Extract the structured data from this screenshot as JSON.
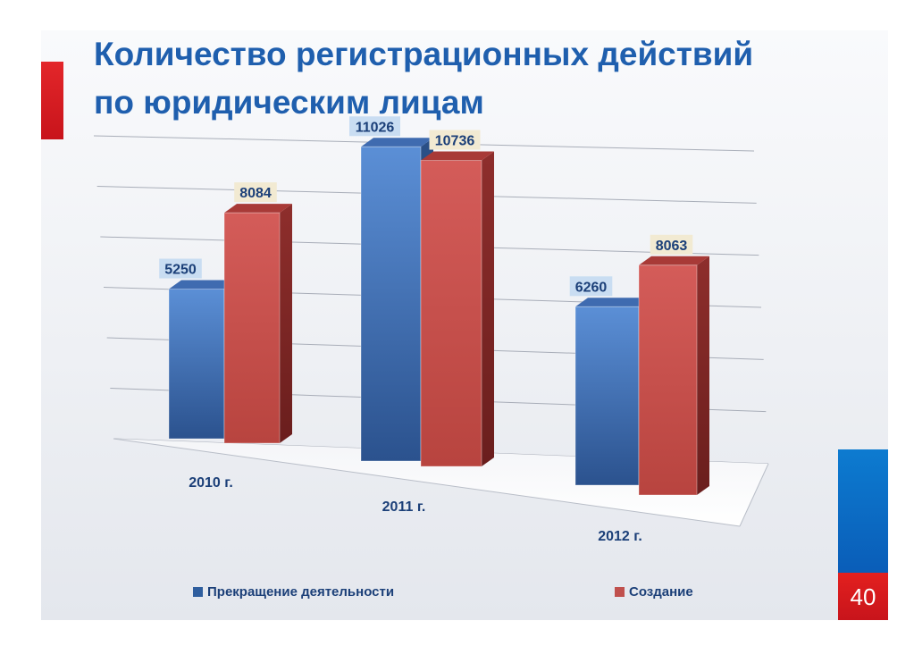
{
  "slide": {
    "title_line1": "Количество регистрационных действий",
    "title_line2": "по юридическим лицам",
    "page_number": "40"
  },
  "colors": {
    "title": "#1f5fae",
    "series_blue": "#4a7cc3",
    "series_red": "#c0504d",
    "accent_red": "#d71920",
    "accent_blue": "#0a6cc4"
  },
  "legend": {
    "items": [
      {
        "label": "Прекращение деятельности",
        "color": "#2f5e9e"
      },
      {
        "label": "Создание",
        "color": "#c0504d"
      }
    ]
  },
  "chart_data": {
    "type": "bar",
    "style": "3d-clustered-column",
    "title": "",
    "xlabel": "",
    "ylabel": "",
    "categories": [
      "2010 г.",
      "2011 г.",
      "2012 г."
    ],
    "series": [
      {
        "name": "Прекращение деятельности",
        "values": [
          5250,
          11026,
          6260
        ],
        "color": "#4a7cc3"
      },
      {
        "name": "Создание",
        "values": [
          8084,
          10736,
          8063
        ],
        "color": "#c0504d"
      }
    ],
    "ylim": [
      0,
      12000
    ],
    "grid": true,
    "legend_position": "bottom",
    "data_labels": true
  }
}
